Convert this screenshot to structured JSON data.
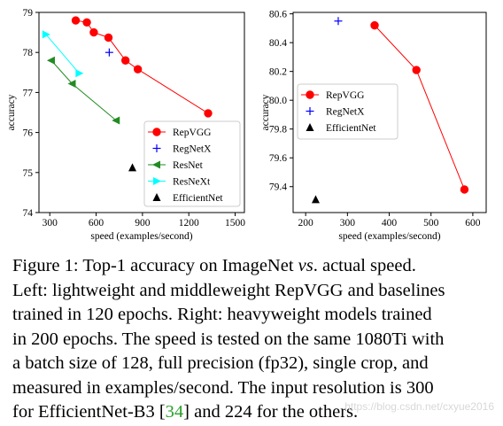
{
  "chart_data": [
    {
      "type": "line",
      "panel": "left",
      "xlabel": "speed (examples/second)",
      "ylabel": "accuracy",
      "xlim": [
        230,
        1560
      ],
      "ylim": [
        74,
        79
      ],
      "xticks": [
        300,
        600,
        900,
        1200,
        1500
      ],
      "yticks": [
        74,
        75,
        76,
        77,
        78,
        79
      ],
      "legend_position": "lower-right",
      "series": [
        {
          "name": "RepVGG",
          "color": "#ff0000",
          "marker": "circle",
          "line": true,
          "points": [
            [
              468,
              78.8
            ],
            [
              540,
              78.75
            ],
            [
              585,
              78.5
            ],
            [
              680,
              78.37
            ],
            [
              790,
              77.8
            ],
            [
              870,
              77.58
            ],
            [
              1325,
              76.48
            ]
          ]
        },
        {
          "name": "RegNetX",
          "color": "#0000ff",
          "marker": "plus",
          "line": false,
          "points": [
            [
              685,
              78.0
            ]
          ]
        },
        {
          "name": "ResNet",
          "color": "#228b22",
          "marker": "triangle-left",
          "line": true,
          "points": [
            [
              310,
              77.8
            ],
            [
              445,
              77.22
            ],
            [
              730,
              76.3
            ]
          ]
        },
        {
          "name": "ResNeXt",
          "color": "#00ffff",
          "marker": "triangle-right",
          "line": true,
          "points": [
            [
              275,
              78.45
            ],
            [
              490,
              77.48
            ]
          ]
        },
        {
          "name": "EfficientNet",
          "color": "#000000",
          "marker": "triangle-up",
          "line": false,
          "points": [
            [
              835,
              75.12
            ]
          ]
        }
      ]
    },
    {
      "type": "line",
      "panel": "right",
      "xlabel": "speed (examples/second)",
      "ylabel": "accuracy",
      "xlim": [
        170,
        632
      ],
      "ylim": [
        79.22,
        80.61
      ],
      "xticks": [
        200,
        300,
        400,
        500,
        600
      ],
      "yticks": [
        79.4,
        79.6,
        79.8,
        80.0,
        80.2,
        80.4,
        80.6
      ],
      "legend_position": "upper-left",
      "series": [
        {
          "name": "RepVGG",
          "color": "#ff0000",
          "marker": "circle",
          "line": true,
          "points": [
            [
              365,
              80.52
            ],
            [
              465,
              80.21
            ],
            [
              580,
              79.38
            ]
          ]
        },
        {
          "name": "RegNetX",
          "color": "#0000ff",
          "marker": "plus",
          "line": false,
          "points": [
            [
              278,
              80.55
            ]
          ]
        },
        {
          "name": "EfficientNet",
          "color": "#000000",
          "marker": "triangle-up",
          "line": false,
          "points": [
            [
              224,
              79.31
            ]
          ]
        }
      ]
    }
  ],
  "caption": {
    "lines": [
      "Figure 1: Top-1 accuracy on ImageNet vs. actual speed.",
      "Left: lightweight and middleweight RepVGG and baselines",
      "trained in 120 epochs. Right: heavyweight models trained",
      "in 200 epochs. The speed is tested on the same 1080Ti with",
      "a batch size of 128, full precision (fp32), single crop, and",
      "measured in examples/second. The input resolution is 300",
      "for EfficientNet-B3 [34] and 224 for the others."
    ],
    "ref": "34"
  },
  "watermark": "https://blog.csdn.net/cxyue2016"
}
